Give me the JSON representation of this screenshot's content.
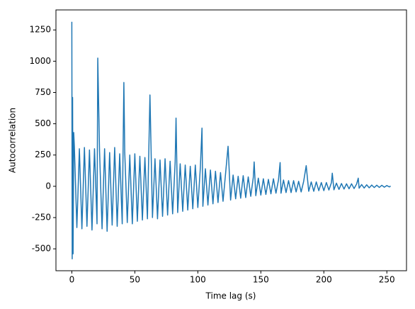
{
  "chart_data": {
    "type": "line",
    "xlabel": "Time lag (s)",
    "ylabel": "Autocorrelation",
    "color": "#1f77b4",
    "x": [
      0,
      0.3,
      0.6,
      1,
      1.5,
      2,
      4,
      6,
      8,
      10,
      12,
      14,
      16,
      18,
      20,
      20.6,
      22,
      24,
      26,
      28,
      30,
      32,
      34,
      36,
      38,
      40,
      41.3,
      42,
      44,
      46,
      48,
      50,
      52,
      54,
      56,
      58,
      60,
      62,
      64,
      66,
      68,
      70,
      72,
      74,
      76,
      78,
      80,
      82,
      82.7,
      84,
      86,
      88,
      90,
      92,
      94,
      96,
      98,
      100,
      102,
      103.3,
      104,
      106,
      108,
      110,
      112,
      114,
      116,
      118,
      120,
      122,
      124,
      126,
      128,
      130,
      132,
      134,
      136,
      138,
      140,
      142,
      144,
      144.7,
      146,
      148,
      150,
      152,
      154,
      156,
      158,
      160,
      162,
      164,
      165.3,
      166,
      168,
      170,
      172,
      174,
      176,
      178,
      180,
      182,
      184,
      186,
      188,
      190,
      192,
      194,
      196,
      198,
      200,
      202,
      204,
      206,
      206.7,
      208,
      210,
      212,
      214,
      216,
      218,
      220,
      222,
      224,
      226,
      227.3,
      228,
      230,
      232,
      234,
      236,
      238,
      240,
      242,
      244,
      246,
      248,
      250,
      252,
      253
    ],
    "values": [
      1315,
      -580,
      710,
      -540,
      430,
      320,
      -330,
      300,
      -340,
      310,
      -320,
      290,
      -350,
      300,
      -300,
      1025,
      280,
      -340,
      300,
      -360,
      270,
      -310,
      310,
      -320,
      260,
      -300,
      830,
      270,
      -290,
      250,
      -300,
      260,
      -280,
      240,
      -270,
      230,
      -260,
      730,
      -250,
      220,
      -260,
      210,
      -240,
      220,
      -230,
      200,
      -220,
      190,
      545,
      -210,
      180,
      -200,
      170,
      -190,
      160,
      -180,
      170,
      -170,
      150,
      465,
      -160,
      140,
      -150,
      130,
      -140,
      120,
      -130,
      110,
      -120,
      100,
      320,
      -110,
      90,
      -100,
      80,
      -95,
      85,
      -90,
      75,
      -80,
      70,
      195,
      -75,
      65,
      -70,
      60,
      -65,
      55,
      -60,
      60,
      -55,
      50,
      190,
      -55,
      50,
      -50,
      45,
      -50,
      45,
      -45,
      40,
      -45,
      40,
      165,
      -40,
      35,
      -40,
      35,
      -35,
      30,
      -35,
      30,
      -30,
      28,
      105,
      -28,
      25,
      -25,
      22,
      -22,
      20,
      -20,
      20,
      -18,
      18,
      65,
      -15,
      14,
      -14,
      12,
      -12,
      10,
      -10,
      9,
      -9,
      8,
      -7,
      6,
      -5,
      2
    ],
    "xlim": [
      -12.6,
      265.6
    ],
    "ylim": [
      -675,
      1410
    ],
    "xticks": [
      0,
      50,
      100,
      150,
      200,
      250
    ],
    "yticks": [
      -500,
      -250,
      0,
      250,
      500,
      750,
      1000,
      1250
    ]
  }
}
